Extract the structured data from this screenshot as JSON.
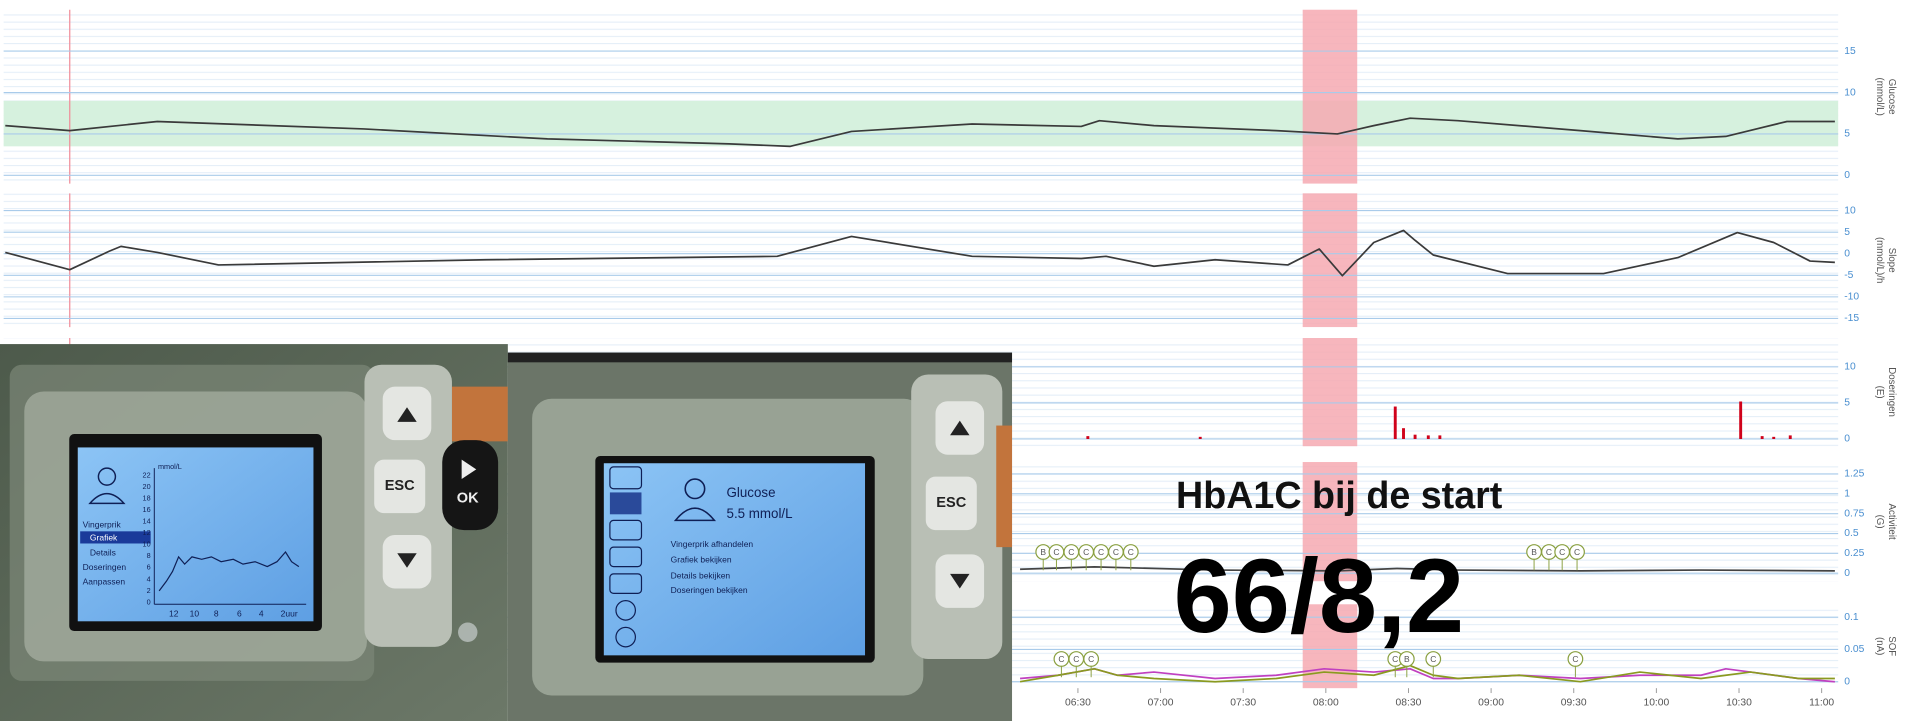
{
  "chart_data": [
    {
      "type": "line",
      "ylabel": [
        "Glucose",
        "(mmol/L)"
      ],
      "x": [
        0.01,
        0.4,
        0.93,
        2.18,
        3.29,
        4.39,
        4.76,
        5.13,
        5.86,
        6.52,
        6.63,
        6.96,
        7.7,
        8.07,
        8.29,
        8.51,
        8.8,
        9.54,
        10.13,
        10.42,
        10.79,
        11.08
      ],
      "values": [
        6.0,
        5.4,
        6.5,
        5.6,
        4.4,
        3.8,
        3.5,
        5.3,
        6.2,
        5.9,
        6.6,
        6.0,
        5.4,
        5.0,
        6.0,
        6.9,
        6.6,
        5.4,
        4.4,
        4.7,
        6.5,
        6.5
      ],
      "color": "#3a3a3a",
      "xlim": [
        0,
        11.1
      ],
      "ylim": [
        -1,
        20
      ],
      "yticks": [
        0,
        5,
        10,
        15
      ],
      "grid": true,
      "target_range": [
        3.5,
        9
      ],
      "target_color": "#d6f1de",
      "highlight": [
        7.86,
        8.19
      ],
      "highlight_color": "#f6a9b1",
      "vline": 0.4,
      "vline_color": "#f08c98"
    },
    {
      "type": "line",
      "ylabel": [
        "Slope",
        "(mmol/L)/h"
      ],
      "x": [
        0.01,
        0.4,
        0.64,
        0.71,
        0.93,
        1.3,
        2.92,
        4.68,
        5.13,
        5.86,
        6.52,
        6.67,
        6.96,
        7.33,
        7.77,
        7.96,
        8.1,
        8.29,
        8.47,
        8.54,
        8.65,
        9.1,
        9.68,
        10.13,
        10.49,
        10.71,
        10.93,
        11.08
      ],
      "values": [
        0.3,
        -3.7,
        0.6,
        1.7,
        0.3,
        -2.6,
        -1.4,
        -0.6,
        4.0,
        -0.6,
        -1.1,
        -0.6,
        -2.9,
        -1.4,
        -2.6,
        1.1,
        -5.1,
        2.6,
        5.4,
        3.1,
        -0.3,
        -4.6,
        -4.6,
        -0.9,
        4.9,
        2.6,
        -1.7,
        -2.0
      ],
      "color": "#3a3a3a",
      "xlim": [
        0,
        11.1
      ],
      "ylim": [
        -17,
        14
      ],
      "yticks": [
        10,
        5,
        0,
        -5,
        -10,
        -15
      ],
      "grid": true,
      "highlight": [
        7.86,
        8.19
      ],
      "highlight_color": "#f6a9b1",
      "vline": 0.4,
      "vline_color": "#f08c98"
    },
    {
      "type": "bar",
      "ylabel": [
        "Doseringen",
        "(E)"
      ],
      "x": [
        6.56,
        7.24,
        8.42,
        8.47,
        8.54,
        8.62,
        8.69,
        10.51,
        10.64,
        10.71,
        10.81
      ],
      "values": [
        0.4,
        0.3,
        4.5,
        1.5,
        0.6,
        0.5,
        0.5,
        5.2,
        0.4,
        0.3,
        0.5
      ],
      "color": "#d0021b",
      "xlim": [
        0,
        11.1
      ],
      "ylim": [
        -1,
        14
      ],
      "yticks": [
        10,
        5,
        0
      ],
      "grid": true,
      "highlight": [
        7.86,
        8.19
      ],
      "highlight_color": "#f6a9b1",
      "vline": 0.4,
      "vline_color": "#f08c98"
    },
    {
      "type": "line",
      "ylabel": [
        "Activiteit",
        "(G)"
      ],
      "x": [
        6.15,
        6.6,
        7.33,
        8.07,
        8.43,
        8.8,
        9.54,
        10.27,
        11.08
      ],
      "values": [
        0.05,
        0.08,
        0.04,
        0.03,
        0.06,
        0.04,
        0.03,
        0.04,
        0.03
      ],
      "color": "#444444",
      "xlim": [
        0,
        11.1
      ],
      "ylim": [
        -0.1,
        1.4
      ],
      "yticks": [
        1.25,
        1,
        0.75,
        0.5,
        0.25,
        0
      ],
      "grid": true,
      "highlight": [
        7.86,
        8.19
      ],
      "highlight_color": "#f6a9b1",
      "marker_color": "#8aa040",
      "markers": [
        {
          "x": 6.29,
          "label": "B"
        },
        {
          "x": 6.37,
          "label": "C"
        },
        {
          "x": 6.46,
          "label": "C"
        },
        {
          "x": 6.55,
          "label": "C"
        },
        {
          "x": 6.64,
          "label": "C"
        },
        {
          "x": 6.73,
          "label": "C"
        },
        {
          "x": 6.82,
          "label": "C"
        },
        {
          "x": 9.26,
          "label": "B"
        },
        {
          "x": 9.35,
          "label": "C"
        },
        {
          "x": 9.43,
          "label": "C"
        },
        {
          "x": 9.52,
          "label": "C"
        }
      ]
    },
    {
      "type": "line",
      "ylabel": [
        "SOF",
        "(nA)"
      ],
      "x": [
        6.15,
        6.38,
        6.6,
        6.74,
        6.96,
        7.33,
        7.7,
        7.99,
        8.29,
        8.51,
        8.65,
        8.8,
        9.17,
        9.54,
        9.9,
        10.27,
        10.42,
        10.57,
        10.86,
        11.08
      ],
      "series": [
        {
          "color": "#c040c0",
          "values": [
            0.005,
            0.01,
            0.02,
            0.01,
            0.015,
            0.005,
            0.01,
            0.02,
            0.015,
            0.02,
            0.005,
            0.005,
            0.01,
            0.005,
            0.01,
            0.01,
            0.02,
            0.015,
            0.005,
            0.0
          ]
        },
        {
          "color": "#8a9a20",
          "values": [
            0.0,
            0.01,
            0.02,
            0.01,
            0.005,
            0.0,
            0.005,
            0.015,
            0.01,
            0.025,
            0.01,
            0.005,
            0.01,
            0.0,
            0.015,
            0.005,
            0.01,
            0.015,
            0.005,
            0.005
          ]
        }
      ],
      "xlim": [
        0,
        11.1
      ],
      "ylim": [
        -0.01,
        0.12
      ],
      "yticks": [
        0.1,
        0.05,
        0
      ],
      "grid": true,
      "highlight": [
        7.86,
        8.19
      ],
      "highlight_color": "#f6a9b1",
      "marker_color": "#8aa040",
      "markers": [
        {
          "x": 6.4,
          "label": "C"
        },
        {
          "x": 6.49,
          "label": "C"
        },
        {
          "x": 6.58,
          "label": "C"
        },
        {
          "x": 8.42,
          "label": "C"
        },
        {
          "x": 8.49,
          "label": "B"
        },
        {
          "x": 8.65,
          "label": "C"
        },
        {
          "x": 9.51,
          "label": "C"
        }
      ],
      "xticks": [
        {
          "value": 6.5,
          "label": "06:30"
        },
        {
          "value": 7,
          "label": "07:00"
        },
        {
          "value": 7.5,
          "label": "07:30"
        },
        {
          "value": 8,
          "label": "08:00"
        },
        {
          "value": 8.5,
          "label": "08:30"
        },
        {
          "value": 9,
          "label": "09:00"
        },
        {
          "value": 9.5,
          "label": "09:30"
        },
        {
          "value": 10,
          "label": "10:00"
        },
        {
          "value": 10.5,
          "label": "10:30"
        },
        {
          "value": 11,
          "label": "11:00"
        }
      ]
    }
  ],
  "overlay": {
    "title": "HbA1C bij de start",
    "value": "66/8,2"
  },
  "devices": {
    "left_screen": {
      "unit": "mmol/L",
      "yticks": [
        "22",
        "20",
        "18",
        "16",
        "14",
        "12",
        "10",
        "8",
        "6",
        "4",
        "2",
        "0"
      ],
      "xticks": [
        "12",
        "10",
        "8",
        "6",
        "4",
        "2uur"
      ],
      "menu": [
        "Vingerprik",
        "Grafiek",
        "Details",
        "Doseringen",
        "Aanpassen"
      ]
    },
    "left_buttons": [
      "ESC",
      "OK"
    ],
    "right_screen": {
      "title": "Glucose",
      "value": "5.5 mmol/L",
      "menu": [
        "Vingerprik afhandelen",
        "Grafiek bekijken",
        "Details bekijken",
        "Doseringen bekijken"
      ]
    },
    "right_buttons": [
      "ESC"
    ]
  }
}
